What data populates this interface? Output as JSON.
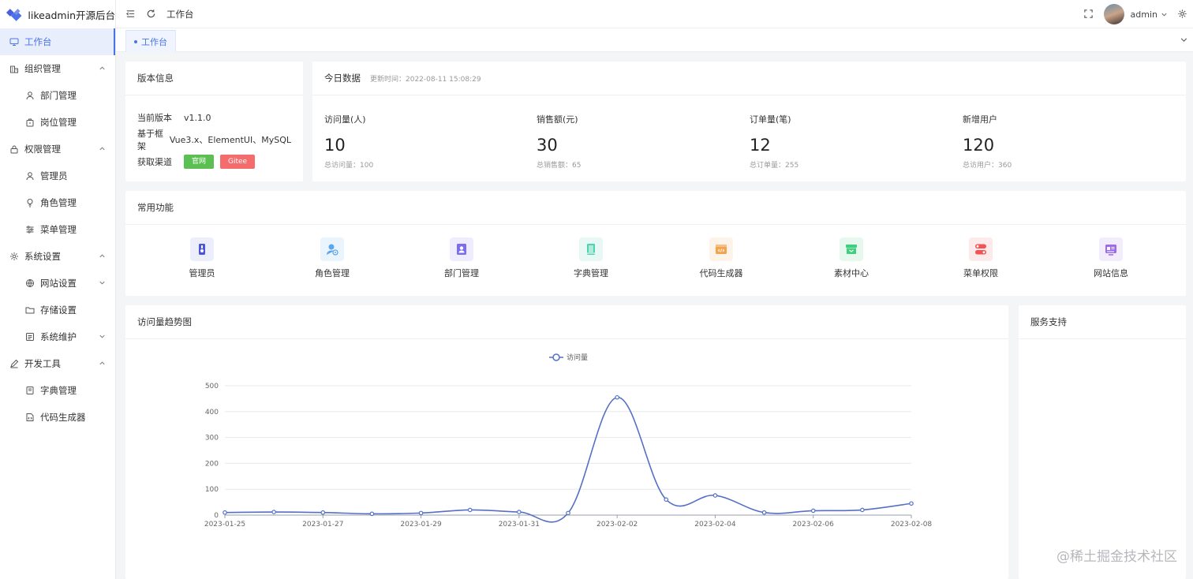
{
  "app": {
    "title": "likeadmin开源后台"
  },
  "colors": {
    "primary": "#4a73e8",
    "green": "#5cbf52",
    "red": "#f56c6c",
    "line": "#5470c6"
  },
  "sidebar": {
    "items": [
      {
        "label": "工作台",
        "icon": "monitor-icon",
        "level": "top",
        "active": true
      },
      {
        "label": "组织管理",
        "icon": "building-icon",
        "level": "top",
        "caret": "up"
      },
      {
        "label": "部门管理",
        "icon": "user-icon",
        "level": "sub"
      },
      {
        "label": "岗位管理",
        "icon": "bag-icon",
        "level": "sub"
      },
      {
        "label": "权限管理",
        "icon": "lock-icon",
        "level": "top",
        "caret": "up"
      },
      {
        "label": "管理员",
        "icon": "user-icon",
        "level": "sub"
      },
      {
        "label": "角色管理",
        "icon": "bulb-icon",
        "level": "sub"
      },
      {
        "label": "菜单管理",
        "icon": "sliders-icon",
        "level": "sub"
      },
      {
        "label": "系统设置",
        "icon": "gear-icon",
        "level": "top",
        "caret": "up"
      },
      {
        "label": "网站设置",
        "icon": "globe-icon",
        "level": "sub",
        "caret": "down"
      },
      {
        "label": "存储设置",
        "icon": "folder-icon",
        "level": "sub"
      },
      {
        "label": "系统维护",
        "icon": "doc-icon",
        "level": "sub",
        "caret": "down"
      },
      {
        "label": "开发工具",
        "icon": "pen-icon",
        "level": "top",
        "caret": "up"
      },
      {
        "label": "字典管理",
        "icon": "book-icon",
        "level": "sub"
      },
      {
        "label": "代码生成器",
        "icon": "code-file-icon",
        "level": "sub"
      }
    ]
  },
  "header": {
    "breadcrumb": "工作台",
    "user": "admin"
  },
  "tabs": {
    "active": "工作台"
  },
  "version": {
    "title": "版本信息",
    "rows": [
      {
        "label": "当前版本",
        "value": "v1.1.0"
      },
      {
        "label": "基于框架",
        "value": "Vue3.x、ElementUI、MySQL"
      },
      {
        "label": "获取渠道"
      }
    ],
    "buttons": [
      "官网",
      "Gitee"
    ]
  },
  "today": {
    "title": "今日数据",
    "updated": "更新时间：2022-08-11 15:08:29",
    "stats": [
      {
        "label": "访问量(人)",
        "value": "10",
        "total": "总访问量：100"
      },
      {
        "label": "销售额(元)",
        "value": "30",
        "total": "总销售额：65"
      },
      {
        "label": "订单量(笔)",
        "value": "12",
        "total": "总订单量：255"
      },
      {
        "label": "新增用户",
        "value": "120",
        "total": "总访用户：360"
      }
    ]
  },
  "functions": {
    "title": "常用功能",
    "items": [
      {
        "label": "管理员",
        "icon": "admin-badge-icon",
        "color": "#4b56d9",
        "bg": "#eceefb"
      },
      {
        "label": "角色管理",
        "icon": "user-settings-icon",
        "color": "#5aa6ef",
        "bg": "#eaf4fd"
      },
      {
        "label": "部门管理",
        "icon": "contact-card-icon",
        "color": "#7b6cf0",
        "bg": "#efedfd"
      },
      {
        "label": "字典管理",
        "icon": "dictionary-icon",
        "color": "#4fd0b0",
        "bg": "#e8f8f4"
      },
      {
        "label": "代码生成器",
        "icon": "code-window-icon",
        "color": "#f4a24c",
        "bg": "#fdf3e8"
      },
      {
        "label": "素材中心",
        "icon": "material-box-icon",
        "color": "#3fcf7e",
        "bg": "#e7f8ee"
      },
      {
        "label": "菜单权限",
        "icon": "menu-toggle-icon",
        "color": "#f05454",
        "bg": "#fdeaea"
      },
      {
        "label": "网站信息",
        "icon": "website-card-icon",
        "color": "#9b6be8",
        "bg": "#f2ecfc"
      }
    ]
  },
  "trend": {
    "title": "访问量趋势图"
  },
  "service": {
    "title": "服务支持"
  },
  "watermark": "@稀土掘金技术社区",
  "chart_data": {
    "type": "line",
    "legend": [
      "访问量"
    ],
    "legend_position": "top-center",
    "x": [
      "2023-01-25",
      "2023-01-26",
      "2023-01-27",
      "2023-01-28",
      "2023-01-29",
      "2023-01-30",
      "2023-01-31",
      "2023-02-01",
      "2023-02-02",
      "2023-02-03",
      "2023-02-04",
      "2023-02-05",
      "2023-02-06",
      "2023-02-07",
      "2023-02-08"
    ],
    "x_tick_labels": [
      "2023-01-25",
      "2023-01-27",
      "2023-01-29",
      "2023-01-31",
      "2023-02-02",
      "2023-02-04",
      "2023-02-06",
      "2023-02-08"
    ],
    "series": [
      {
        "name": "访问量",
        "values": [
          10,
          12,
          10,
          5,
          8,
          20,
          12,
          8,
          455,
          60,
          76,
          10,
          17,
          20,
          45
        ]
      }
    ],
    "ylim": [
      0,
      500
    ],
    "y_ticks": [
      0,
      100,
      200,
      300,
      400,
      500
    ],
    "grid": true,
    "smooth": true
  }
}
